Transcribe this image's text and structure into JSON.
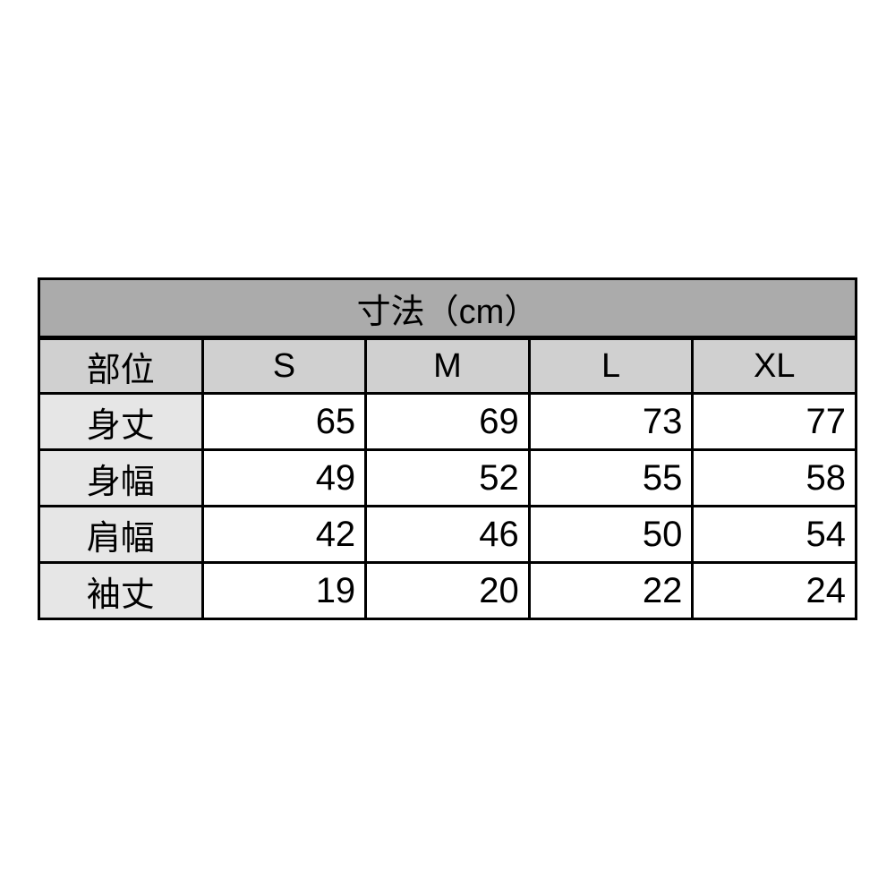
{
  "table": {
    "title": "寸法（cm）",
    "header": [
      "部位",
      "S",
      "M",
      "L",
      "XL"
    ],
    "rows": [
      {
        "label": "身丈",
        "values": [
          "65",
          "69",
          "73",
          "77"
        ]
      },
      {
        "label": "身幅",
        "values": [
          "49",
          "52",
          "55",
          "58"
        ]
      },
      {
        "label": "肩幅",
        "values": [
          "42",
          "46",
          "50",
          "54"
        ]
      },
      {
        "label": "袖丈",
        "values": [
          "19",
          "20",
          "22",
          "24"
        ]
      }
    ],
    "colors": {
      "title_bg": "#ababab",
      "header_bg": "#d0d0d0",
      "label_bg": "#e6e6e6",
      "cell_bg": "#ffffff",
      "border": "#000000",
      "text": "#000000"
    }
  },
  "chart_data": {
    "type": "table",
    "title": "寸法（cm）",
    "columns": [
      "部位",
      "S",
      "M",
      "L",
      "XL"
    ],
    "rows": [
      [
        "身丈",
        65,
        69,
        73,
        77
      ],
      [
        "身幅",
        49,
        52,
        55,
        58
      ],
      [
        "肩幅",
        42,
        46,
        50,
        54
      ],
      [
        "袖丈",
        19,
        20,
        22,
        24
      ]
    ],
    "units": "cm",
    "layout_hints": {
      "title_row_spans_all_columns": true,
      "value_alignment": "right",
      "label_alignment": "center",
      "grid": "black solid borders on all cells"
    }
  }
}
